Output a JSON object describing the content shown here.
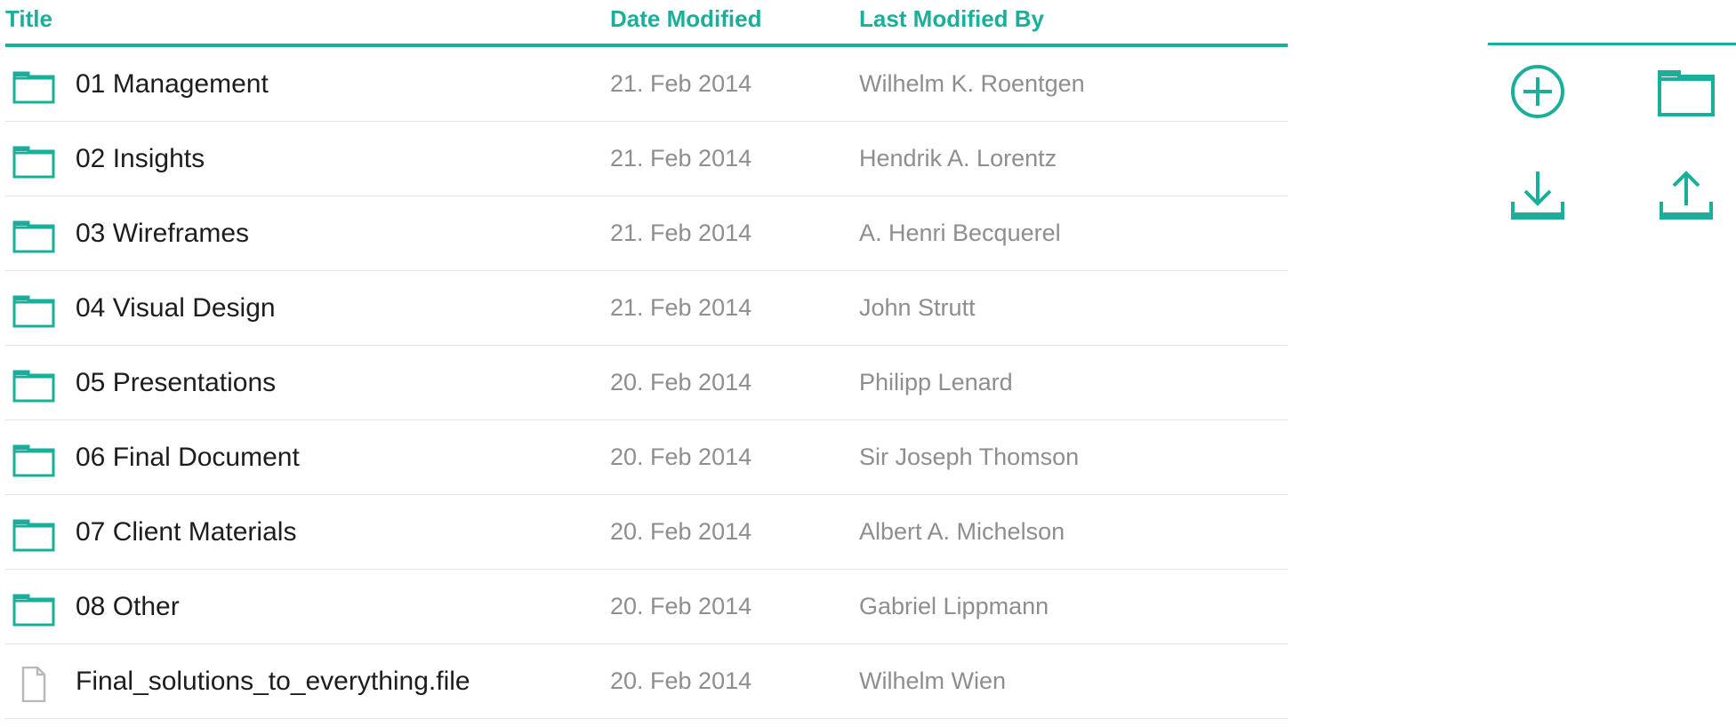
{
  "table": {
    "headers": {
      "title": "Title",
      "date_modified": "Date Modified",
      "last_modified_by": "Last Modified By"
    },
    "rows": [
      {
        "type": "folder",
        "icon": "folder-icon",
        "title": "01 Management",
        "date": "21. Feb 2014",
        "user": "Wilhelm K. Roentgen"
      },
      {
        "type": "folder",
        "icon": "folder-icon",
        "title": "02 Insights",
        "date": "21. Feb 2014",
        "user": "Hendrik A. Lorentz"
      },
      {
        "type": "folder",
        "icon": "folder-icon",
        "title": "03 Wireframes",
        "date": "21. Feb 2014",
        "user": "A. Henri Becquerel"
      },
      {
        "type": "folder",
        "icon": "folder-icon",
        "title": "04 Visual Design",
        "date": "21. Feb 2014",
        "user": "John Strutt"
      },
      {
        "type": "folder",
        "icon": "folder-icon",
        "title": "05 Presentations",
        "date": "20. Feb 2014",
        "user": "Philipp Lenard"
      },
      {
        "type": "folder",
        "icon": "folder-icon",
        "title": "06 Final Document",
        "date": "20. Feb 2014",
        "user": "Sir Joseph Thomson"
      },
      {
        "type": "folder",
        "icon": "folder-icon",
        "title": "07 Client Materials",
        "date": "20. Feb 2014",
        "user": "Albert A. Michelson"
      },
      {
        "type": "folder",
        "icon": "folder-icon",
        "title": "08 Other",
        "date": "20. Feb 2014",
        "user": "Gabriel Lippmann"
      },
      {
        "type": "file",
        "icon": "file-icon",
        "title": "Final_solutions_to_everything.file",
        "date": "20. Feb 2014",
        "user": "Wilhelm Wien"
      }
    ]
  },
  "actions": {
    "add": {
      "icon": "add-circle-icon"
    },
    "new_folder": {
      "icon": "folder-icon"
    },
    "download": {
      "icon": "download-icon"
    },
    "upload": {
      "icon": "upload-icon"
    }
  },
  "colors": {
    "accent": "#1aaf9b",
    "title_text": "#1d1d1d",
    "secondary_text": "#8e8e8e",
    "row_divider": "#e3e3e3",
    "file_icon": "#b9b9b9"
  }
}
